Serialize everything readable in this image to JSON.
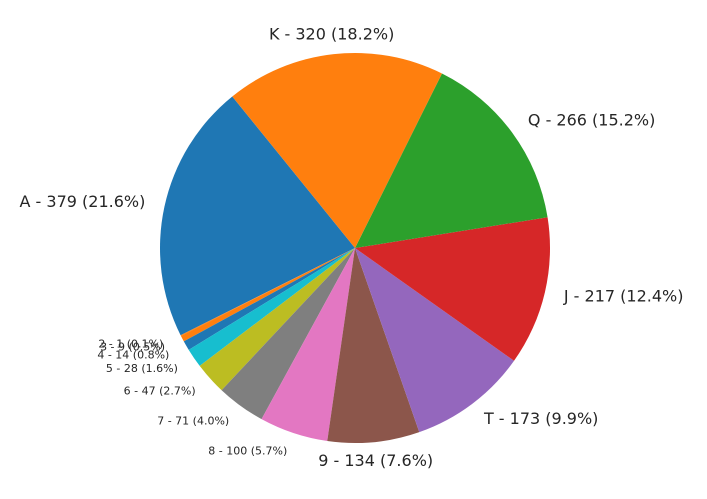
{
  "chart_data": {
    "type": "pie",
    "title": "",
    "slices": [
      {
        "category": "A",
        "value": 379,
        "percent": "21.6%",
        "label": "A - 379 (21.6%)",
        "color": "#1f77b4"
      },
      {
        "category": "2",
        "value": 1,
        "percent": "0.1%",
        "label": "2 - 1 (0.1%)",
        "color": "#ff7f0e"
      },
      {
        "category": "3",
        "value": 9,
        "percent": "0.5%",
        "label": "3 - 9 (0.5%)",
        "color": "#ff7f0e"
      },
      {
        "category": "4",
        "value": 14,
        "percent": "0.8%",
        "label": "4 - 14 (0.8%)",
        "color": "#1f77b4"
      },
      {
        "category": "5",
        "value": 28,
        "percent": "1.6%",
        "label": "5 - 28 (1.6%)",
        "color": "#17becf"
      },
      {
        "category": "6",
        "value": 47,
        "percent": "2.7%",
        "label": "6 - 47 (2.7%)",
        "color": "#bcbd22"
      },
      {
        "category": "7",
        "value": 71,
        "percent": "4.0%",
        "label": "7 - 71 (4.0%)",
        "color": "#7f7f7f"
      },
      {
        "category": "8",
        "value": 100,
        "percent": "5.7%",
        "label": "8 - 100 (5.7%)",
        "color": "#e377c2"
      },
      {
        "category": "9",
        "value": 134,
        "percent": "7.6%",
        "label": "9 - 134 (7.6%)",
        "color": "#8c564b"
      },
      {
        "category": "T",
        "value": 173,
        "percent": "9.9%",
        "label": "T - 173 (9.9%)",
        "color": "#9467bd"
      },
      {
        "category": "J",
        "value": 217,
        "percent": "12.4%",
        "label": "J - 217 (12.4%)",
        "color": "#d62728"
      },
      {
        "category": "Q",
        "value": 266,
        "percent": "15.2%",
        "label": "Q - 266 (15.2%)",
        "color": "#2ca02c"
      },
      {
        "category": "K",
        "value": 320,
        "percent": "18.2%",
        "label": "K - 320 (18.2%)",
        "color": "#ff7f0e"
      }
    ],
    "start_angle_deg": 129,
    "direction": "clockwise",
    "legend": "none"
  }
}
